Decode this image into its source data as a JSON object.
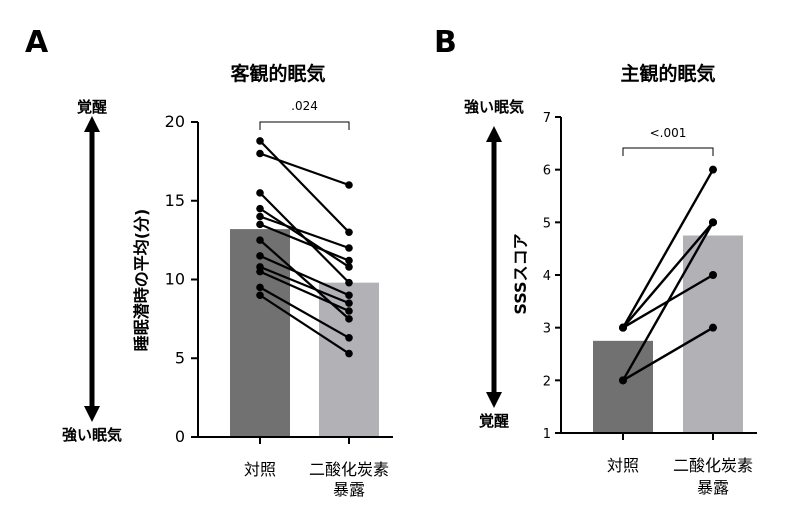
{
  "chart_data": [
    {
      "panel": "A",
      "type": "bar",
      "title": "客観的眠気",
      "ylabel": "睡眠潜時の平均(分)",
      "ylim": [
        0,
        20
      ],
      "yticks": [
        "0",
        "5",
        "10",
        "15",
        "20"
      ],
      "categories": [
        "対照",
        "二酸化炭素\n暴露"
      ],
      "category_lines": [
        [
          "対照"
        ],
        [
          "二酸化炭素",
          "暴露"
        ]
      ],
      "bar_values": [
        13.2,
        9.8
      ],
      "bar_colors": [
        "#717171",
        "#b1b1b6"
      ],
      "paired_points": [
        [
          18.8,
          13.0
        ],
        [
          18.0,
          16.0
        ],
        [
          15.5,
          9.8
        ],
        [
          14.5,
          10.8
        ],
        [
          14.0,
          12.0
        ],
        [
          13.5,
          11.2
        ],
        [
          12.5,
          7.5
        ],
        [
          11.5,
          9.0
        ],
        [
          10.8,
          8.5
        ],
        [
          10.5,
          8.0
        ],
        [
          9.5,
          6.3
        ],
        [
          9.0,
          5.3
        ]
      ],
      "significance": ".024",
      "arrow_top_label": "覚醒",
      "arrow_bottom_label": "強い眠気"
    },
    {
      "panel": "B",
      "type": "bar",
      "title": "主観的眠気",
      "ylabel": "SSSスコア",
      "ylim": [
        1,
        7
      ],
      "yticks": [
        "1",
        "2",
        "3",
        "4",
        "5",
        "6",
        "7"
      ],
      "categories": [
        "対照",
        "二酸化炭素\n暴露"
      ],
      "category_lines": [
        [
          "対照"
        ],
        [
          "二酸化炭素",
          "暴露"
        ]
      ],
      "bar_values": [
        2.75,
        4.75
      ],
      "bar_colors": [
        "#717171",
        "#b1b1b6"
      ],
      "paired_points": [
        [
          3,
          6
        ],
        [
          3,
          5
        ],
        [
          3,
          4
        ],
        [
          2,
          5
        ],
        [
          2,
          3
        ]
      ],
      "significance": "<.001",
      "arrow_top_label": "強い眠気",
      "arrow_bottom_label": "覚醒"
    }
  ]
}
